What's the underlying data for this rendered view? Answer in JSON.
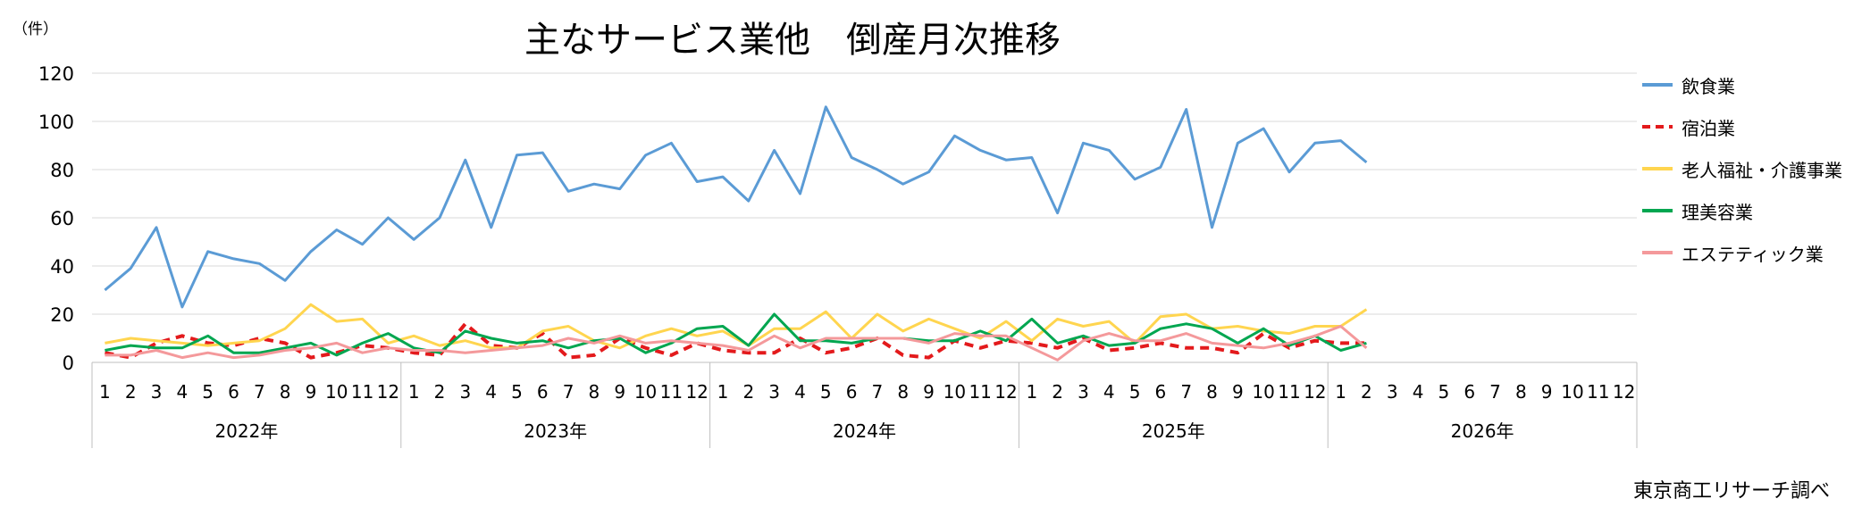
{
  "chart_data": {
    "type": "line",
    "title": "主なサービス業他　倒産月次推移",
    "unit_label": "（件）",
    "source": "東京商工リサーチ調べ",
    "ylim": [
      0,
      120
    ],
    "yticks": [
      "0",
      "20",
      "40",
      "60",
      "80",
      "100",
      "120"
    ],
    "grid": true,
    "legend_position": "right",
    "x_month_labels": [
      "1",
      "2",
      "3",
      "4",
      "5",
      "6",
      "7",
      "8",
      "9",
      "10",
      "11",
      "12"
    ],
    "years": [
      "2022年",
      "2023年",
      "2024年",
      "2025年",
      "2026年"
    ],
    "series": [
      {
        "name": "飲食業",
        "color": "#5B9BD5",
        "dash": false,
        "values": [
          30,
          39,
          56,
          23,
          46,
          43,
          41,
          34,
          46,
          55,
          49,
          60,
          51,
          60,
          84,
          56,
          86,
          87,
          71,
          74,
          72,
          86,
          91,
          75,
          77,
          67,
          88,
          70,
          106,
          85,
          80,
          74,
          79,
          94,
          88,
          84,
          85,
          62,
          91,
          88,
          76,
          81,
          105,
          56,
          91,
          97,
          79,
          91,
          92,
          83
        ]
      },
      {
        "name": "宿泊業",
        "color": "#E31A1C",
        "dash": true,
        "values": [
          4,
          2,
          8,
          11,
          8,
          7,
          10,
          8,
          2,
          4,
          7,
          6,
          4,
          3,
          16,
          7,
          6,
          12,
          2,
          3,
          10,
          6,
          3,
          8,
          5,
          4,
          4,
          10,
          4,
          6,
          10,
          3,
          2,
          9,
          6,
          9,
          8,
          6,
          10,
          5,
          6,
          8,
          6,
          6,
          4,
          12,
          6,
          9,
          8,
          8
        ]
      },
      {
        "name": "老人福祉・介護事業",
        "color": "#FFD54F",
        "dash": false,
        "values": [
          8,
          10,
          9,
          8,
          7,
          8,
          9,
          14,
          24,
          17,
          18,
          8,
          11,
          7,
          9,
          6,
          6,
          13,
          15,
          9,
          6,
          11,
          14,
          11,
          13,
          7,
          14,
          14,
          21,
          10,
          20,
          13,
          18,
          14,
          10,
          17,
          9,
          18,
          15,
          17,
          8,
          19,
          20,
          14,
          15,
          13,
          12,
          15,
          15,
          22
        ]
      },
      {
        "name": "理美容業",
        "color": "#00A650",
        "dash": false,
        "values": [
          5,
          7,
          6,
          6,
          11,
          4,
          4,
          6,
          8,
          3,
          8,
          12,
          6,
          4,
          13,
          10,
          8,
          9,
          6,
          9,
          10,
          4,
          8,
          14,
          15,
          7,
          20,
          9,
          9,
          8,
          10,
          10,
          9,
          9,
          13,
          9,
          18,
          8,
          11,
          7,
          8,
          14,
          16,
          14,
          8,
          14,
          7,
          11,
          5,
          8
        ]
      },
      {
        "name": "エステティック業",
        "color": "#F4999B",
        "dash": false,
        "values": [
          3,
          3,
          5,
          2,
          4,
          2,
          3,
          5,
          6,
          8,
          4,
          6,
          5,
          5,
          4,
          5,
          6,
          7,
          10,
          8,
          11,
          8,
          9,
          8,
          7,
          5,
          11,
          6,
          10,
          10,
          10,
          10,
          8,
          12,
          11,
          11,
          6,
          1,
          9,
          12,
          9,
          9,
          12,
          8,
          7,
          6,
          8,
          11,
          15,
          6
        ]
      }
    ]
  }
}
